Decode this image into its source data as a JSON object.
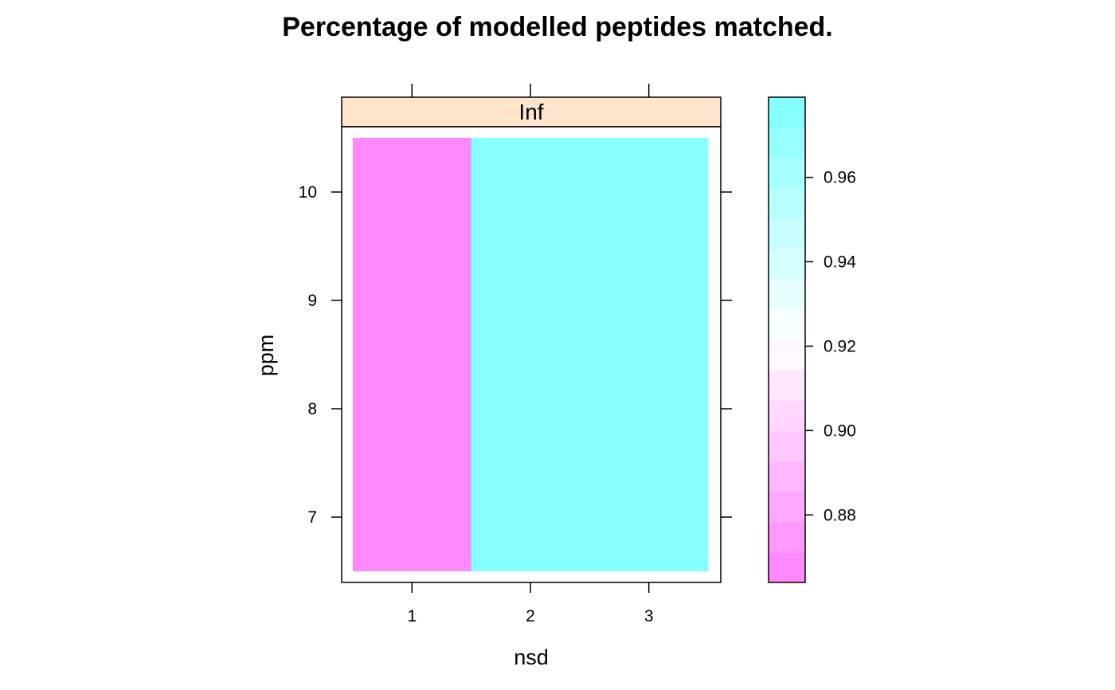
{
  "chart_data": {
    "type": "heatmap",
    "title": "Percentage of modelled peptides matched.",
    "xlabel": "nsd",
    "ylabel": "ppm",
    "panel_strip": "Inf",
    "x_ticks": [
      1,
      2,
      3
    ],
    "y_ticks": [
      7,
      8,
      9,
      10
    ],
    "xlim": [
      0.5,
      3.5
    ],
    "ylim": [
      6.5,
      10.5
    ],
    "cells": [
      {
        "nsd_from": 0.5,
        "nsd_to": 1.5,
        "ppm_from": 6.5,
        "ppm_to": 10.5,
        "value": 0.867
      },
      {
        "nsd_from": 1.5,
        "nsd_to": 2.5,
        "ppm_from": 6.5,
        "ppm_to": 10.5,
        "value": 0.975
      },
      {
        "nsd_from": 2.5,
        "nsd_to": 3.5,
        "ppm_from": 6.5,
        "ppm_to": 10.5,
        "value": 0.975
      }
    ],
    "colorkey": {
      "range": [
        0.864,
        0.979
      ],
      "ticks": [
        0.88,
        0.9,
        0.92,
        0.94,
        0.96
      ],
      "tick_labels": [
        "0.88",
        "0.90",
        "0.92",
        "0.94",
        "0.96"
      ],
      "low_color": "#FF80FF",
      "mid_color": "#FFFFFF",
      "high_color": "#80FFFF",
      "levels": 16
    },
    "grid": false,
    "legend": "right"
  },
  "colors": {
    "strip_bg": "#FFE5CC",
    "frame": "#000000"
  }
}
